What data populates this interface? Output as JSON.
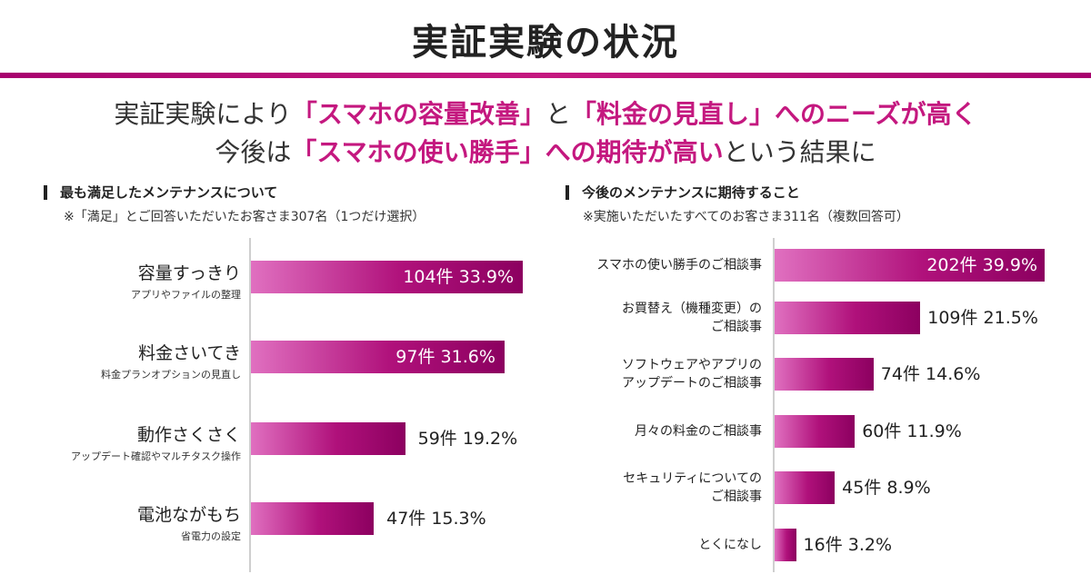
{
  "page_title": "実証実験の状況",
  "headline": {
    "line1": [
      {
        "text": "実証実験により",
        "hl": false
      },
      {
        "text": "「スマホの容量改善」",
        "hl": true
      },
      {
        "text": "と",
        "hl": false
      },
      {
        "text": "「料金の見直し」",
        "hl": true
      },
      {
        "text": "へのニーズが高く",
        "hl": true
      }
    ],
    "line2": [
      {
        "text": "今後は",
        "hl": false
      },
      {
        "text": "「スマホの使い勝手」",
        "hl": true
      },
      {
        "text": "への期待が高い",
        "hl": true
      },
      {
        "text": "という結果に",
        "hl": false
      }
    ]
  },
  "colors": {
    "accent": "#c4187f",
    "bar_dark": "#8c0060",
    "bar_light": "#e070c0"
  },
  "chart_data": [
    {
      "type": "bar",
      "orientation": "horizontal",
      "title": "最も満足したメンテナンスについて",
      "subtitle": "※「満足」とご回答いただいたお客さま307名（1つだけ選択）",
      "unit": "件",
      "xlim": [
        0,
        104
      ],
      "categories": [
        {
          "label": "容量すっきり",
          "sub": "アプリやファイルの整理",
          "count": 104,
          "percent": 33.9,
          "count_text": "104件",
          "percent_text": "33.9%"
        },
        {
          "label": "料金さいてき",
          "sub": "料金プランオプションの見直し",
          "count": 97,
          "percent": 31.6,
          "count_text": "97件",
          "percent_text": "31.6%"
        },
        {
          "label": "動作さくさく",
          "sub": "アップデート確認やマルチタスク操作",
          "count": 59,
          "percent": 19.2,
          "count_text": "59件",
          "percent_text": "19.2%"
        },
        {
          "label": "電池ながもち",
          "sub": "省電力の設定",
          "count": 47,
          "percent": 15.3,
          "count_text": "47件",
          "percent_text": "15.3%"
        }
      ]
    },
    {
      "type": "bar",
      "orientation": "horizontal",
      "title": "今後のメンテナンスに期待すること",
      "subtitle": "※実施いただいたすべてのお客さま311名（複数回答可）",
      "unit": "件",
      "xlim": [
        0,
        202
      ],
      "categories": [
        {
          "label": [
            "スマホの使い勝手のご相談事"
          ],
          "count": 202,
          "percent": 39.9,
          "count_text": "202件",
          "percent_text": "39.9%"
        },
        {
          "label": [
            "お買替え（機種変更）の",
            "ご相談事"
          ],
          "count": 109,
          "percent": 21.5,
          "count_text": "109件",
          "percent_text": "21.5%"
        },
        {
          "label": [
            "ソフトウェアやアプリの",
            "アップデートのご相談事"
          ],
          "count": 74,
          "percent": 14.6,
          "count_text": "74件",
          "percent_text": "14.6%"
        },
        {
          "label": [
            "月々の料金のご相談事"
          ],
          "count": 60,
          "percent": 11.9,
          "count_text": "60件",
          "percent_text": "11.9%"
        },
        {
          "label": [
            "セキュリティについての",
            "ご相談事"
          ],
          "count": 45,
          "percent": 8.9,
          "count_text": "45件",
          "percent_text": "8.9%"
        },
        {
          "label": [
            "とくになし"
          ],
          "count": 16,
          "percent": 3.2,
          "count_text": "16件",
          "percent_text": "3.2%"
        }
      ]
    }
  ]
}
